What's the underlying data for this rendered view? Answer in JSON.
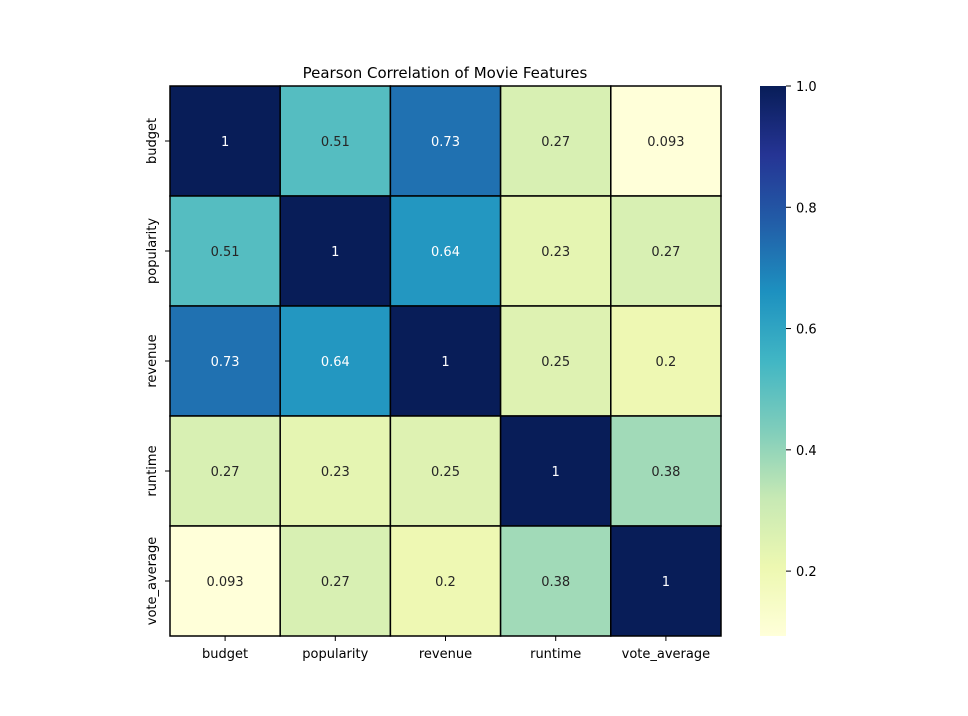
{
  "chart_data": {
    "type": "heatmap",
    "title": "Pearson Correlation of Movie Features",
    "xlabel": "",
    "ylabel": "",
    "x_categories": [
      "budget",
      "popularity",
      "revenue",
      "runtime",
      "vote_average"
    ],
    "y_categories": [
      "budget",
      "popularity",
      "revenue",
      "runtime",
      "vote_average"
    ],
    "values": [
      [
        1,
        0.51,
        0.73,
        0.27,
        0.093
      ],
      [
        0.51,
        1,
        0.64,
        0.23,
        0.27
      ],
      [
        0.73,
        0.64,
        1,
        0.25,
        0.2
      ],
      [
        0.27,
        0.23,
        0.25,
        1,
        0.38
      ],
      [
        0.093,
        0.27,
        0.2,
        0.38,
        1
      ]
    ],
    "value_labels": [
      [
        "1",
        "0.51",
        "0.73",
        "0.27",
        "0.093"
      ],
      [
        "0.51",
        "1",
        "0.64",
        "0.23",
        "0.27"
      ],
      [
        "0.73",
        "0.64",
        "1",
        "0.25",
        "0.2"
      ],
      [
        "0.27",
        "0.23",
        "0.25",
        "1",
        "0.38"
      ],
      [
        "0.093",
        "0.27",
        "0.2",
        "0.38",
        "1"
      ]
    ],
    "colormap": "YlGnBu",
    "colorbar": {
      "range": [
        0.093,
        1.0
      ],
      "ticks": [
        0.2,
        0.4,
        0.6,
        0.8,
        1.0
      ],
      "tick_labels": [
        "0.2",
        "0.4",
        "0.6",
        "0.8",
        "1.0"
      ]
    },
    "cell_border_color": "#000000",
    "grid": false
  }
}
